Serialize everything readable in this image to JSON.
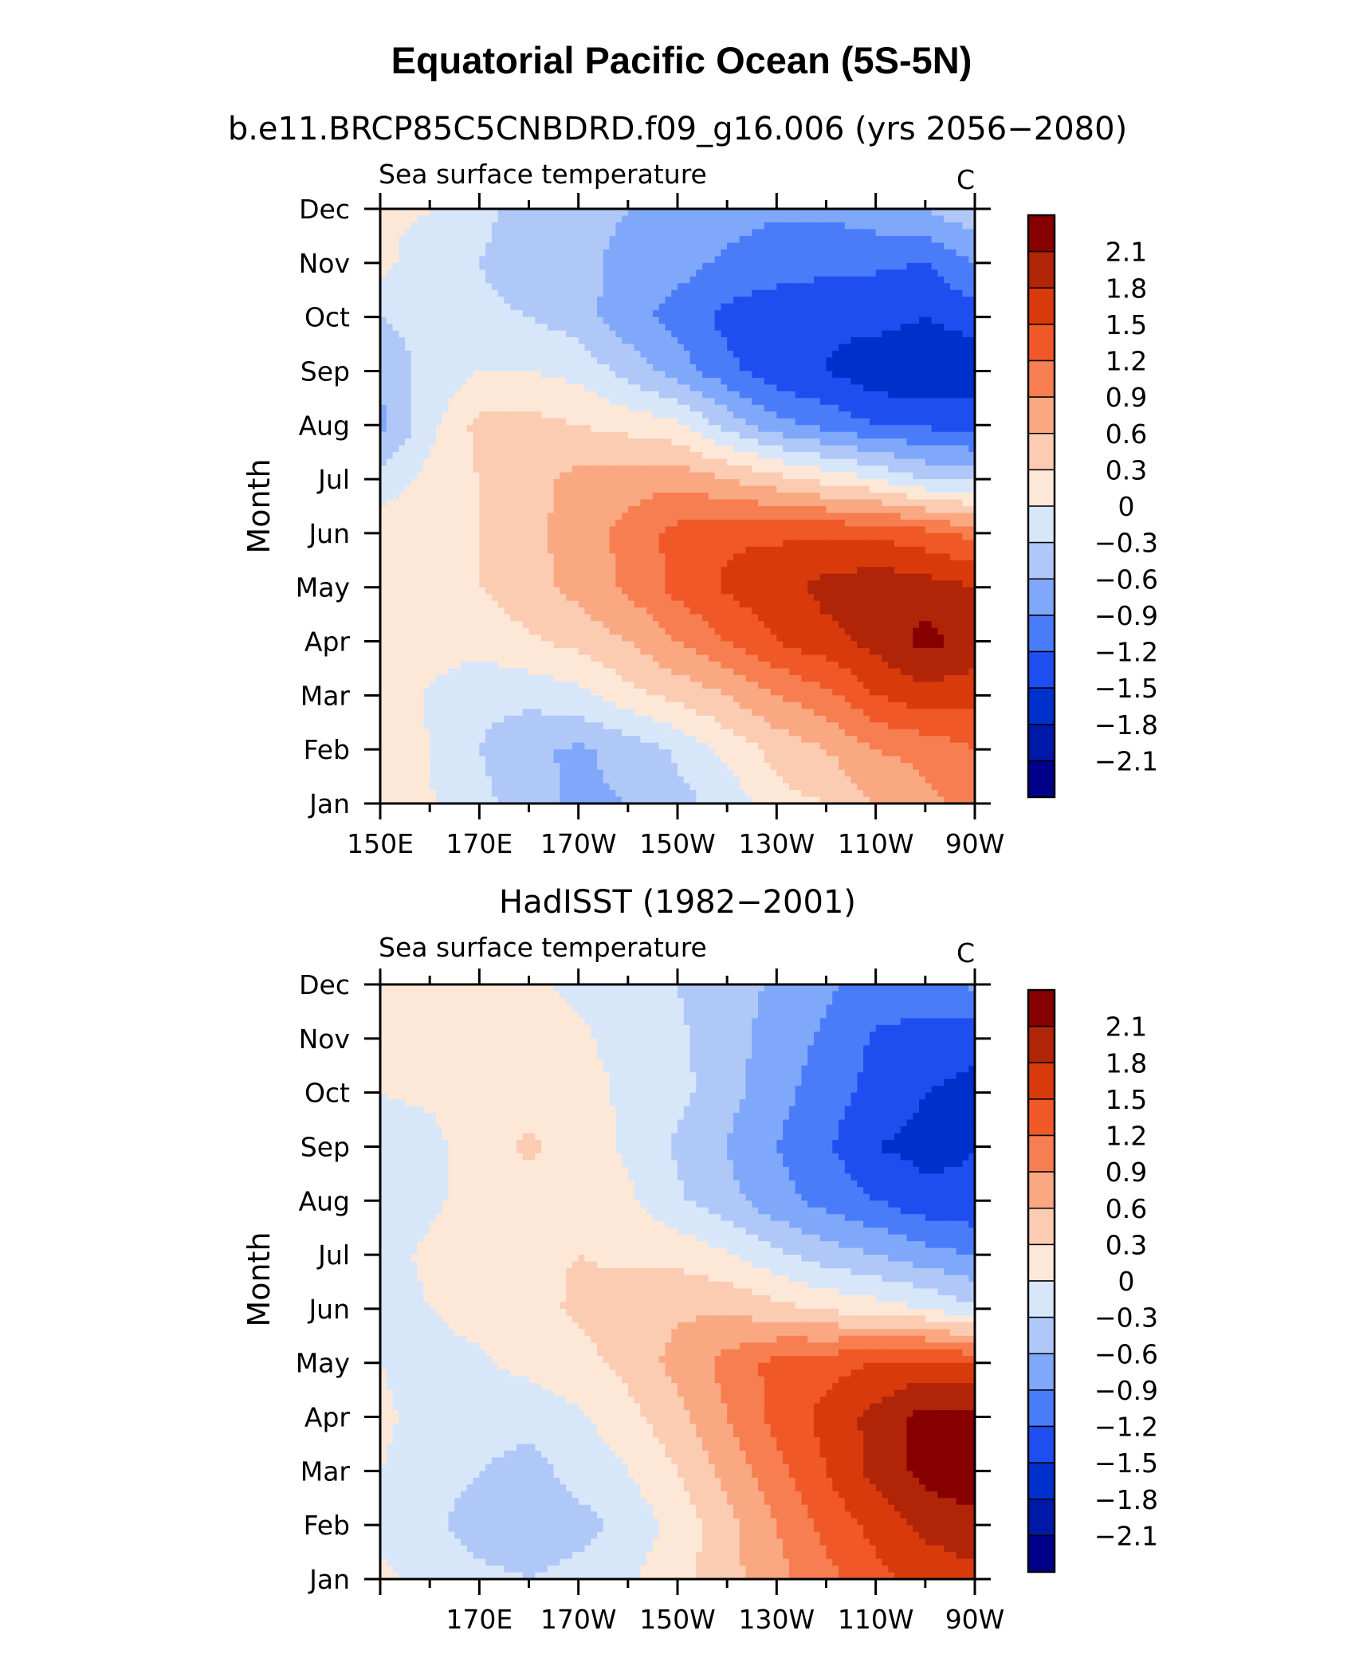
{
  "title": "Equatorial Pacific Ocean (5S-5N)",
  "colors": {
    "palette": [
      "#00008b",
      "#0018a8",
      "#0030cc",
      "#1f4ef0",
      "#4a7cfa",
      "#80a8fa",
      "#b0c8f8",
      "#d8e6fa",
      "#fde8d8",
      "#fbcbb2",
      "#f9a882",
      "#f77e50",
      "#f05828",
      "#d93a0c",
      "#b02408",
      "#870000"
    ],
    "axis": "#000000",
    "background": "#ffffff"
  },
  "chart_data": [
    {
      "type": "heatmap",
      "subtitle": "b.e11.BRCP85C5CNBDRD.f09_g16.006 (yrs 2056−2080)",
      "left_label": "Sea surface temperature",
      "units": "C",
      "ylabel": "Month",
      "xlabel": "",
      "x_ticks": [
        "150E",
        "170E",
        "170W",
        "150W",
        "130W",
        "110W",
        "90W"
      ],
      "y_ticks": [
        "Jan",
        "Feb",
        "Mar",
        "Apr",
        "May",
        "Jun",
        "Jul",
        "Aug",
        "Sep",
        "Oct",
        "Nov",
        "Dec"
      ],
      "x_range_lon": [
        150,
        270
      ],
      "y_range": [
        "Jan",
        "Dec"
      ],
      "colorbar_levels": [
        -2.1,
        -1.8,
        -1.5,
        -1.2,
        -0.9,
        -0.6,
        -0.3,
        0,
        0.3,
        0.6,
        0.9,
        1.2,
        1.5,
        1.8,
        2.1
      ],
      "colorbar_labels": [
        "2.1",
        "1.8",
        "1.5",
        "1.2",
        "0.9",
        "0.6",
        "0.3",
        "0",
        "−0.3",
        "−0.6",
        "−0.9",
        "−1.2",
        "−1.5",
        "−1.8",
        "−2.1"
      ],
      "grid_lon": [
        150,
        160,
        170,
        180,
        190,
        200,
        210,
        220,
        230,
        240,
        250,
        260,
        270
      ],
      "grid_months": [
        "Jan",
        "Feb",
        "Mar",
        "Apr",
        "May",
        "Jun",
        "Jul",
        "Aug",
        "Sep",
        "Oct",
        "Nov",
        "Dec"
      ],
      "grid_values": [
        [
          0.1,
          0.02,
          -0.2,
          -0.5,
          -0.65,
          -0.6,
          -0.4,
          -0.2,
          0.2,
          0.3,
          0.6,
          0.8,
          1.0
        ],
        [
          0.1,
          0.0,
          -0.3,
          -0.55,
          -0.65,
          -0.5,
          -0.25,
          0.1,
          0.4,
          0.6,
          0.9,
          1.0,
          1.2
        ],
        [
          0.1,
          -0.02,
          -0.2,
          -0.2,
          -0.1,
          0.2,
          0.4,
          0.6,
          0.9,
          1.1,
          1.5,
          1.7,
          1.6
        ],
        [
          0.15,
          0.1,
          0.1,
          0.25,
          0.4,
          0.6,
          0.9,
          1.2,
          1.5,
          1.7,
          1.9,
          2.2,
          2.0
        ],
        [
          0.2,
          0.2,
          0.3,
          0.5,
          0.7,
          0.95,
          1.3,
          1.55,
          1.7,
          1.9,
          2.0,
          1.95,
          1.8
        ],
        [
          0.2,
          0.25,
          0.3,
          0.5,
          0.75,
          1.0,
          1.3,
          1.45,
          1.45,
          1.45,
          1.45,
          1.3,
          1.1
        ],
        [
          -0.2,
          0.1,
          0.3,
          0.5,
          0.7,
          0.75,
          0.8,
          0.6,
          0.4,
          0.2,
          0.0,
          -0.3,
          -0.4
        ],
        [
          -0.7,
          -0.1,
          0.4,
          0.4,
          0.3,
          0.2,
          0.05,
          -0.4,
          -0.8,
          -1.0,
          -1.2,
          -1.25,
          -1.3
        ],
        [
          -0.5,
          -0.2,
          0.0,
          0.0,
          -0.1,
          -0.4,
          -0.75,
          -1.1,
          -1.4,
          -1.5,
          -1.7,
          -1.8,
          -1.7
        ],
        [
          -0.3,
          -0.2,
          -0.2,
          -0.3,
          -0.45,
          -0.8,
          -1.0,
          -1.3,
          -1.4,
          -1.45,
          -1.4,
          -1.5,
          -1.35
        ],
        [
          0.1,
          -0.2,
          -0.3,
          -0.5,
          -0.55,
          -0.65,
          -0.8,
          -0.95,
          -1.05,
          -1.1,
          -1.15,
          -1.2,
          -0.9
        ],
        [
          0.05,
          0.02,
          -0.2,
          -0.45,
          -0.55,
          -0.6,
          -0.75,
          -0.8,
          -0.85,
          -0.85,
          -0.7,
          -0.6,
          -0.35
        ]
      ]
    },
    {
      "type": "heatmap",
      "subtitle": "HadISST (1982−2001)",
      "left_label": "Sea surface temperature",
      "units": "C",
      "ylabel": "Month",
      "xlabel": "",
      "x_ticks": [
        "170E",
        "170W",
        "150W",
        "130W",
        "110W",
        "90W"
      ],
      "y_ticks": [
        "Jan",
        "Feb",
        "Mar",
        "Apr",
        "May",
        "Jun",
        "Jul",
        "Aug",
        "Sep",
        "Oct",
        "Nov",
        "Dec"
      ],
      "x_range_lon": [
        150,
        270
      ],
      "y_range": [
        "Jan",
        "Dec"
      ],
      "colorbar_levels": [
        -2.1,
        -1.8,
        -1.5,
        -1.2,
        -0.9,
        -0.6,
        -0.3,
        0,
        0.3,
        0.6,
        0.9,
        1.2,
        1.5,
        1.8,
        2.1
      ],
      "colorbar_labels": [
        "2.1",
        "1.8",
        "1.5",
        "1.2",
        "0.9",
        "0.6",
        "0.3",
        "0",
        "−0.3",
        "−0.6",
        "−0.9",
        "−1.2",
        "−1.5",
        "−1.8",
        "−2.1"
      ],
      "grid_lon": [
        150,
        160,
        170,
        180,
        190,
        200,
        210,
        220,
        230,
        240,
        250,
        260,
        270
      ],
      "grid_months": [
        "Jan",
        "Feb",
        "Mar",
        "Apr",
        "May",
        "Jun",
        "Jul",
        "Aug",
        "Sep",
        "Oct",
        "Nov",
        "Dec"
      ],
      "grid_values": [
        [
          0.05,
          -0.05,
          -0.2,
          -0.3,
          -0.2,
          -0.05,
          0.2,
          0.5,
          0.8,
          1.1,
          1.4,
          1.6,
          1.7
        ],
        [
          -0.05,
          -0.2,
          -0.5,
          -0.5,
          -0.4,
          -0.2,
          0.1,
          0.5,
          0.9,
          1.3,
          1.6,
          1.9,
          2.0
        ],
        [
          0.0,
          -0.1,
          -0.3,
          -0.4,
          -0.2,
          0.0,
          0.3,
          0.7,
          1.1,
          1.5,
          1.9,
          2.2,
          2.3
        ],
        [
          0.05,
          -0.1,
          -0.2,
          -0.2,
          -0.05,
          0.2,
          0.5,
          0.9,
          1.3,
          1.6,
          1.9,
          2.2,
          2.2
        ],
        [
          0.0,
          -0.1,
          -0.05,
          0.1,
          0.2,
          0.4,
          0.7,
          1.0,
          1.3,
          1.4,
          1.5,
          1.6,
          1.5
        ],
        [
          -0.1,
          0.0,
          0.1,
          0.2,
          0.35,
          0.45,
          0.55,
          0.55,
          0.4,
          0.25,
          0.15,
          0.0,
          -0.25
        ],
        [
          -0.1,
          0.05,
          0.15,
          0.25,
          0.3,
          0.25,
          0.2,
          0.05,
          -0.25,
          -0.45,
          -0.6,
          -0.8,
          -0.9
        ],
        [
          -0.1,
          -0.05,
          0.1,
          0.15,
          0.2,
          0.05,
          -0.25,
          -0.5,
          -0.8,
          -1.0,
          -1.2,
          -1.4,
          -1.45
        ],
        [
          -0.15,
          -0.1,
          0.2,
          0.35,
          0.15,
          -0.05,
          -0.35,
          -0.6,
          -0.9,
          -1.15,
          -1.5,
          -1.6,
          -1.5
        ],
        [
          0.0,
          0.05,
          0.1,
          0.15,
          0.1,
          -0.05,
          -0.2,
          -0.5,
          -0.8,
          -1.05,
          -1.3,
          -1.5,
          -1.6
        ],
        [
          0.05,
          0.05,
          0.1,
          0.05,
          0.05,
          -0.1,
          -0.25,
          -0.45,
          -0.75,
          -0.95,
          -1.25,
          -1.3,
          -1.4
        ],
        [
          0.05,
          0.05,
          0.1,
          0.05,
          -0.05,
          -0.2,
          -0.3,
          -0.45,
          -0.65,
          -0.85,
          -1.0,
          -1.05,
          -0.85
        ]
      ]
    }
  ]
}
